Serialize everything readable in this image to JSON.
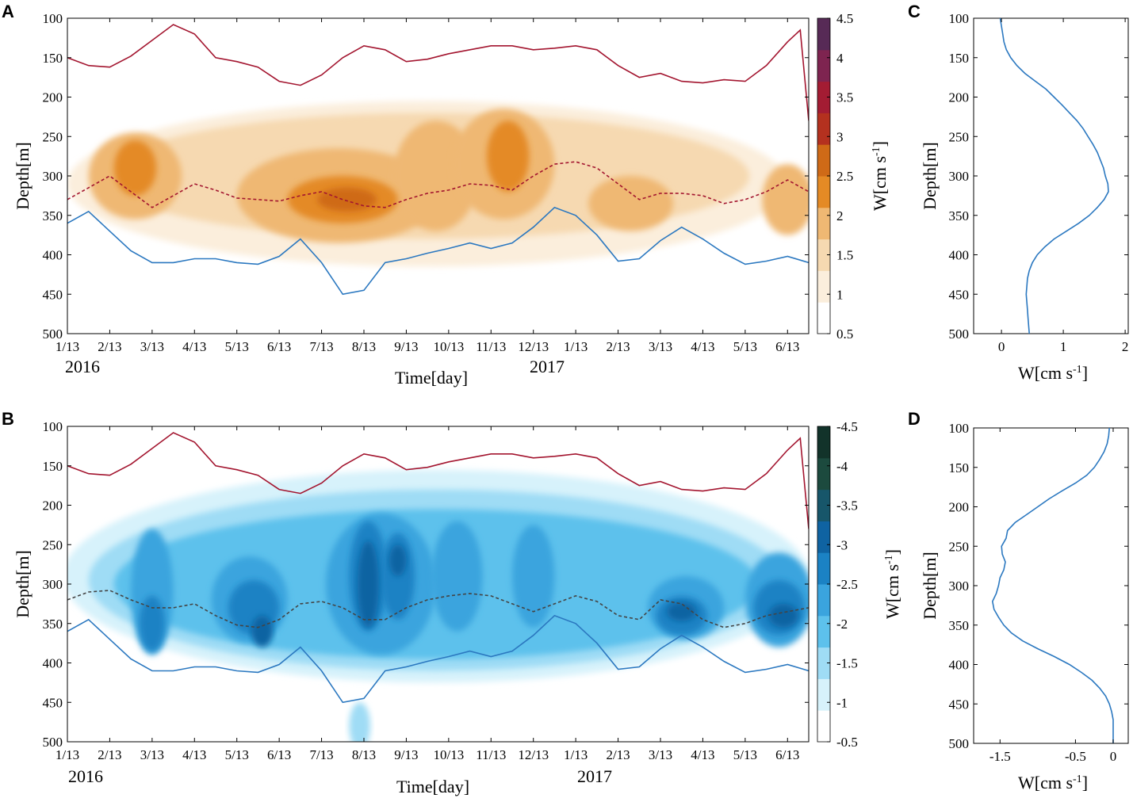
{
  "chart_data": [
    {
      "id": "A",
      "type": "heatmap",
      "panel_label": "A",
      "title": "",
      "xlabel": "Time[day]",
      "ylabel": "Depth[m]",
      "x_ticks": [
        "1/13",
        "2/13",
        "3/13",
        "4/13",
        "5/13",
        "6/13",
        "7/13",
        "8/13",
        "9/13",
        "10/13",
        "11/13",
        "12/13",
        "1/13",
        "2/13",
        "3/13",
        "4/13",
        "5/13",
        "6/13"
      ],
      "year_labels": [
        "2016",
        "2017"
      ],
      "y_ticks": [
        100,
        150,
        200,
        250,
        300,
        350,
        400,
        450,
        500
      ],
      "ylim": [
        100,
        500
      ],
      "y_reversed": true,
      "colorbar": {
        "label_main": "W[cm s",
        "label_sup": "-1",
        "label_end": "]",
        "ticks": [
          "0.5",
          "1",
          "1.5",
          "2",
          "2.5",
          "3",
          "3.5",
          "4",
          "4.5"
        ],
        "range": [
          0.5,
          4.5
        ],
        "colors": [
          "#ffffff",
          "#fbeedc",
          "#f6d9b1",
          "#efb873",
          "#e48a25",
          "#cf6a17",
          "#b4311f",
          "#a31c33",
          "#7e2450",
          "#572a56"
        ]
      },
      "lines": [
        {
          "name": "upper boundary",
          "color": "#a3152f",
          "style": "solid",
          "x": [
            0,
            0.5,
            1,
            1.5,
            2,
            2.5,
            3,
            3.5,
            4,
            4.5,
            5,
            5.5,
            6,
            6.5,
            7,
            7.5,
            8,
            8.5,
            9,
            9.5,
            10,
            10.5,
            11,
            11.5,
            12,
            12.5,
            13,
            13.5,
            14,
            14.5,
            15,
            15.5,
            16,
            16.5,
            17,
            17.3,
            17.5
          ],
          "y": [
            150,
            160,
            162,
            148,
            128,
            108,
            120,
            150,
            155,
            162,
            180,
            185,
            172,
            150,
            135,
            140,
            155,
            152,
            145,
            140,
            135,
            135,
            140,
            138,
            135,
            140,
            160,
            175,
            170,
            180,
            182,
            178,
            180,
            160,
            130,
            115,
            230
          ]
        },
        {
          "name": "core depth",
          "color": "#a3152f",
          "style": "dashed",
          "x": [
            0,
            0.5,
            1,
            1.5,
            2,
            2.5,
            3,
            3.5,
            4,
            4.5,
            5,
            5.5,
            6,
            6.5,
            7,
            7.5,
            8,
            8.5,
            9,
            9.5,
            10,
            10.5,
            11,
            11.5,
            12,
            12.5,
            13,
            13.5,
            14,
            14.5,
            15,
            15.5,
            16,
            16.5,
            17,
            17.5
          ],
          "y": [
            330,
            315,
            300,
            320,
            340,
            325,
            310,
            318,
            328,
            330,
            332,
            325,
            320,
            330,
            338,
            340,
            330,
            322,
            318,
            310,
            312,
            318,
            300,
            285,
            282,
            290,
            310,
            330,
            322,
            322,
            325,
            335,
            330,
            320,
            305,
            320
          ]
        },
        {
          "name": "lower boundary",
          "color": "#2b78c0",
          "style": "solid",
          "x": [
            0,
            0.5,
            1,
            1.5,
            2,
            2.5,
            3,
            3.5,
            4,
            4.5,
            5,
            5.5,
            6,
            6.5,
            7,
            7.5,
            8,
            8.5,
            9,
            9.5,
            10,
            10.5,
            11,
            11.5,
            12,
            12.5,
            13,
            13.5,
            14,
            14.5,
            15,
            15.5,
            16,
            16.5,
            17,
            17.5
          ],
          "y": [
            360,
            345,
            370,
            395,
            410,
            410,
            405,
            405,
            410,
            412,
            402,
            380,
            410,
            450,
            445,
            410,
            405,
            398,
            392,
            385,
            392,
            385,
            365,
            340,
            350,
            375,
            408,
            405,
            382,
            365,
            380,
            398,
            412,
            408,
            402,
            410
          ]
        }
      ],
      "blobs": [
        {
          "x": 8.5,
          "y": 310,
          "rx": 8.5,
          "ry": 105,
          "level": 1
        },
        {
          "x": 8.5,
          "y": 300,
          "rx": 7.6,
          "ry": 80,
          "level": 2
        },
        {
          "x": 1.6,
          "y": 300,
          "rx": 1.1,
          "ry": 55,
          "level": 3
        },
        {
          "x": 6.4,
          "y": 325,
          "rx": 2.4,
          "ry": 60,
          "level": 3
        },
        {
          "x": 8.7,
          "y": 300,
          "rx": 1.0,
          "ry": 70,
          "level": 3
        },
        {
          "x": 10.3,
          "y": 285,
          "rx": 1.2,
          "ry": 70,
          "level": 3
        },
        {
          "x": 13.3,
          "y": 335,
          "rx": 1.0,
          "ry": 35,
          "level": 3
        },
        {
          "x": 17.0,
          "y": 330,
          "rx": 0.6,
          "ry": 45,
          "level": 3
        },
        {
          "x": 6.5,
          "y": 330,
          "rx": 1.3,
          "ry": 30,
          "level": 4
        },
        {
          "x": 10.4,
          "y": 275,
          "rx": 0.5,
          "ry": 45,
          "level": 4
        },
        {
          "x": 1.6,
          "y": 290,
          "rx": 0.5,
          "ry": 35,
          "level": 4
        },
        {
          "x": 6.6,
          "y": 330,
          "rx": 0.7,
          "ry": 15,
          "level": 5
        }
      ]
    },
    {
      "id": "B",
      "type": "heatmap",
      "panel_label": "B",
      "title": "",
      "xlabel": "Time[day]",
      "ylabel": "Depth[m]",
      "x_ticks": [
        "1/13",
        "2/13",
        "3/13",
        "4/13",
        "5/13",
        "6/13",
        "7/13",
        "8/13",
        "9/13",
        "10/13",
        "11/13",
        "12/13",
        "1/13",
        "2/13",
        "3/13",
        "4/13",
        "5/13",
        "6/13"
      ],
      "year_labels": [
        "2016",
        "2017"
      ],
      "y_ticks": [
        100,
        150,
        200,
        250,
        300,
        350,
        400,
        450,
        500
      ],
      "ylim": [
        100,
        500
      ],
      "y_reversed": true,
      "colorbar": {
        "label_main": "W[cm s",
        "label_sup": "-1",
        "label_end": "]",
        "ticks": [
          "-0.5",
          "-1",
          "-1.5",
          "-2",
          "-2.5",
          "-3",
          "-3.5",
          "-4",
          "-4.5"
        ],
        "range": [
          -0.5,
          -4.5
        ],
        "colors": [
          "#ffffff",
          "#d7f2fb",
          "#9fdcf5",
          "#5dc1ec",
          "#3aa4de",
          "#1b82c4",
          "#0f63a2",
          "#17566a",
          "#1c4a3e",
          "#12332a"
        ]
      },
      "lines": [
        {
          "name": "upper boundary",
          "color": "#a3152f",
          "style": "solid",
          "x": [
            0,
            0.5,
            1,
            1.5,
            2,
            2.5,
            3,
            3.5,
            4,
            4.5,
            5,
            5.5,
            6,
            6.5,
            7,
            7.5,
            8,
            8.5,
            9,
            9.5,
            10,
            10.5,
            11,
            11.5,
            12,
            12.5,
            13,
            13.5,
            14,
            14.5,
            15,
            15.5,
            16,
            16.5,
            17,
            17.3,
            17.5
          ],
          "y": [
            150,
            160,
            162,
            148,
            128,
            108,
            120,
            150,
            155,
            162,
            180,
            185,
            172,
            150,
            135,
            140,
            155,
            152,
            145,
            140,
            135,
            135,
            140,
            138,
            135,
            140,
            160,
            175,
            170,
            180,
            182,
            178,
            180,
            160,
            130,
            115,
            230
          ]
        },
        {
          "name": "core depth",
          "color": "#444444",
          "style": "dashed",
          "x": [
            0,
            0.5,
            1,
            1.5,
            2,
            2.5,
            3,
            3.5,
            4,
            4.5,
            5,
            5.5,
            6,
            6.5,
            7,
            7.5,
            8,
            8.5,
            9,
            9.5,
            10,
            10.5,
            11,
            11.5,
            12,
            12.5,
            13,
            13.5,
            14,
            14.5,
            15,
            15.5,
            16,
            16.5,
            17,
            17.5
          ],
          "y": [
            320,
            310,
            308,
            320,
            330,
            330,
            325,
            340,
            352,
            355,
            345,
            325,
            322,
            330,
            345,
            345,
            330,
            320,
            315,
            312,
            315,
            325,
            335,
            325,
            315,
            322,
            340,
            345,
            320,
            325,
            345,
            355,
            350,
            340,
            335,
            330
          ]
        },
        {
          "name": "lower boundary",
          "color": "#2b78c0",
          "style": "solid",
          "x": [
            0,
            0.5,
            1,
            1.5,
            2,
            2.5,
            3,
            3.5,
            4,
            4.5,
            5,
            5.5,
            6,
            6.5,
            7,
            7.5,
            8,
            8.5,
            9,
            9.5,
            10,
            10.5,
            11,
            11.5,
            12,
            12.5,
            13,
            13.5,
            14,
            14.5,
            15,
            15.5,
            16,
            16.5,
            17,
            17.5
          ],
          "y": [
            360,
            345,
            370,
            395,
            410,
            410,
            405,
            405,
            410,
            412,
            402,
            380,
            410,
            450,
            445,
            410,
            405,
            398,
            392,
            385,
            392,
            385,
            365,
            340,
            350,
            375,
            408,
            405,
            382,
            365,
            380,
            398,
            412,
            408,
            402,
            410
          ]
        }
      ],
      "blobs": [
        {
          "x": 8.7,
          "y": 290,
          "rx": 8.8,
          "ry": 135,
          "level": 1
        },
        {
          "x": 8.7,
          "y": 295,
          "rx": 8.2,
          "ry": 115,
          "level": 2
        },
        {
          "x": 8.7,
          "y": 300,
          "rx": 7.6,
          "ry": 95,
          "level": 3
        },
        {
          "x": 6.9,
          "y": 480,
          "rx": 0.25,
          "ry": 30,
          "level": 2
        },
        {
          "x": 2.0,
          "y": 310,
          "rx": 0.5,
          "ry": 80,
          "level": 4
        },
        {
          "x": 4.3,
          "y": 320,
          "rx": 0.9,
          "ry": 55,
          "level": 4
        },
        {
          "x": 7.4,
          "y": 300,
          "rx": 1.3,
          "ry": 90,
          "level": 4
        },
        {
          "x": 9.2,
          "y": 290,
          "rx": 0.6,
          "ry": 70,
          "level": 4
        },
        {
          "x": 11.0,
          "y": 290,
          "rx": 0.5,
          "ry": 65,
          "level": 4
        },
        {
          "x": 14.6,
          "y": 330,
          "rx": 0.9,
          "ry": 40,
          "level": 4
        },
        {
          "x": 16.8,
          "y": 320,
          "rx": 0.8,
          "ry": 60,
          "level": 4
        },
        {
          "x": 2.0,
          "y": 350,
          "rx": 0.3,
          "ry": 35,
          "level": 5
        },
        {
          "x": 4.4,
          "y": 330,
          "rx": 0.6,
          "ry": 35,
          "level": 5
        },
        {
          "x": 7.1,
          "y": 290,
          "rx": 0.45,
          "ry": 70,
          "level": 5
        },
        {
          "x": 7.8,
          "y": 290,
          "rx": 0.4,
          "ry": 55,
          "level": 5
        },
        {
          "x": 14.5,
          "y": 340,
          "rx": 0.6,
          "ry": 25,
          "level": 5
        },
        {
          "x": 16.8,
          "y": 330,
          "rx": 0.6,
          "ry": 35,
          "level": 5
        },
        {
          "x": 7.1,
          "y": 300,
          "rx": 0.25,
          "ry": 55,
          "level": 6
        },
        {
          "x": 7.8,
          "y": 270,
          "rx": 0.2,
          "ry": 20,
          "level": 6
        },
        {
          "x": 14.5,
          "y": 335,
          "rx": 0.35,
          "ry": 12,
          "level": 6
        },
        {
          "x": 16.9,
          "y": 340,
          "rx": 0.35,
          "ry": 15,
          "level": 6
        },
        {
          "x": 4.6,
          "y": 360,
          "rx": 0.25,
          "ry": 20,
          "level": 6
        }
      ]
    },
    {
      "id": "C",
      "type": "line",
      "panel_label": "C",
      "xlabel_main": "W[cm s",
      "xlabel_sup": "-1",
      "xlabel_end": "]",
      "ylabel": "Depth[m]",
      "x_ticks": [
        "0",
        "1",
        "2"
      ],
      "xlim": [
        -0.45,
        2.05
      ],
      "y_ticks": [
        100,
        150,
        200,
        250,
        300,
        350,
        400,
        450,
        500
      ],
      "ylim": [
        100,
        500
      ],
      "y_reversed": true,
      "series": [
        {
          "name": "mean W",
          "color": "#2b78c0",
          "y": [
            100,
            110,
            120,
            130,
            140,
            150,
            160,
            170,
            180,
            190,
            200,
            210,
            220,
            230,
            240,
            250,
            260,
            270,
            280,
            290,
            300,
            310,
            320,
            330,
            340,
            350,
            360,
            370,
            380,
            390,
            400,
            410,
            420,
            430,
            440,
            450,
            460,
            470,
            480,
            490,
            500
          ],
          "x": [
            -0.02,
            0.0,
            0.02,
            0.04,
            0.08,
            0.15,
            0.25,
            0.38,
            0.55,
            0.72,
            0.85,
            0.98,
            1.1,
            1.22,
            1.32,
            1.4,
            1.48,
            1.55,
            1.6,
            1.65,
            1.68,
            1.72,
            1.73,
            1.66,
            1.55,
            1.42,
            1.25,
            1.05,
            0.85,
            0.7,
            0.58,
            0.5,
            0.45,
            0.42,
            0.41,
            0.4,
            0.41,
            0.42,
            0.43,
            0.44,
            0.45
          ]
        }
      ]
    },
    {
      "id": "D",
      "type": "line",
      "panel_label": "D",
      "xlabel_main": "W[cm s",
      "xlabel_sup": "-1",
      "xlabel_end": "]",
      "ylabel": "Depth[m]",
      "x_ticks": [
        "-1.5",
        "-0.5",
        "0"
      ],
      "x_tick_values": [
        -1.5,
        -0.5,
        0
      ],
      "xlim": [
        -1.85,
        0.2
      ],
      "y_ticks": [
        100,
        150,
        200,
        250,
        300,
        350,
        400,
        450,
        500
      ],
      "ylim": [
        100,
        500
      ],
      "y_reversed": true,
      "series": [
        {
          "name": "mean W",
          "color": "#2b78c0",
          "y": [
            100,
            110,
            120,
            130,
            140,
            150,
            160,
            170,
            180,
            190,
            200,
            210,
            220,
            230,
            240,
            250,
            260,
            270,
            280,
            290,
            300,
            310,
            320,
            330,
            340,
            350,
            360,
            370,
            380,
            390,
            400,
            410,
            420,
            430,
            440,
            450,
            460,
            470,
            480,
            490,
            500
          ],
          "x": [
            -0.05,
            -0.06,
            -0.08,
            -0.12,
            -0.18,
            -0.25,
            -0.35,
            -0.5,
            -0.68,
            -0.85,
            -1.0,
            -1.15,
            -1.3,
            -1.4,
            -1.42,
            -1.48,
            -1.47,
            -1.43,
            -1.45,
            -1.5,
            -1.52,
            -1.55,
            -1.6,
            -1.58,
            -1.52,
            -1.45,
            -1.35,
            -1.2,
            -1.0,
            -0.78,
            -0.58,
            -0.42,
            -0.28,
            -0.18,
            -0.1,
            -0.05,
            -0.02,
            0.0,
            0.0,
            0.0,
            0.0
          ]
        }
      ]
    }
  ]
}
